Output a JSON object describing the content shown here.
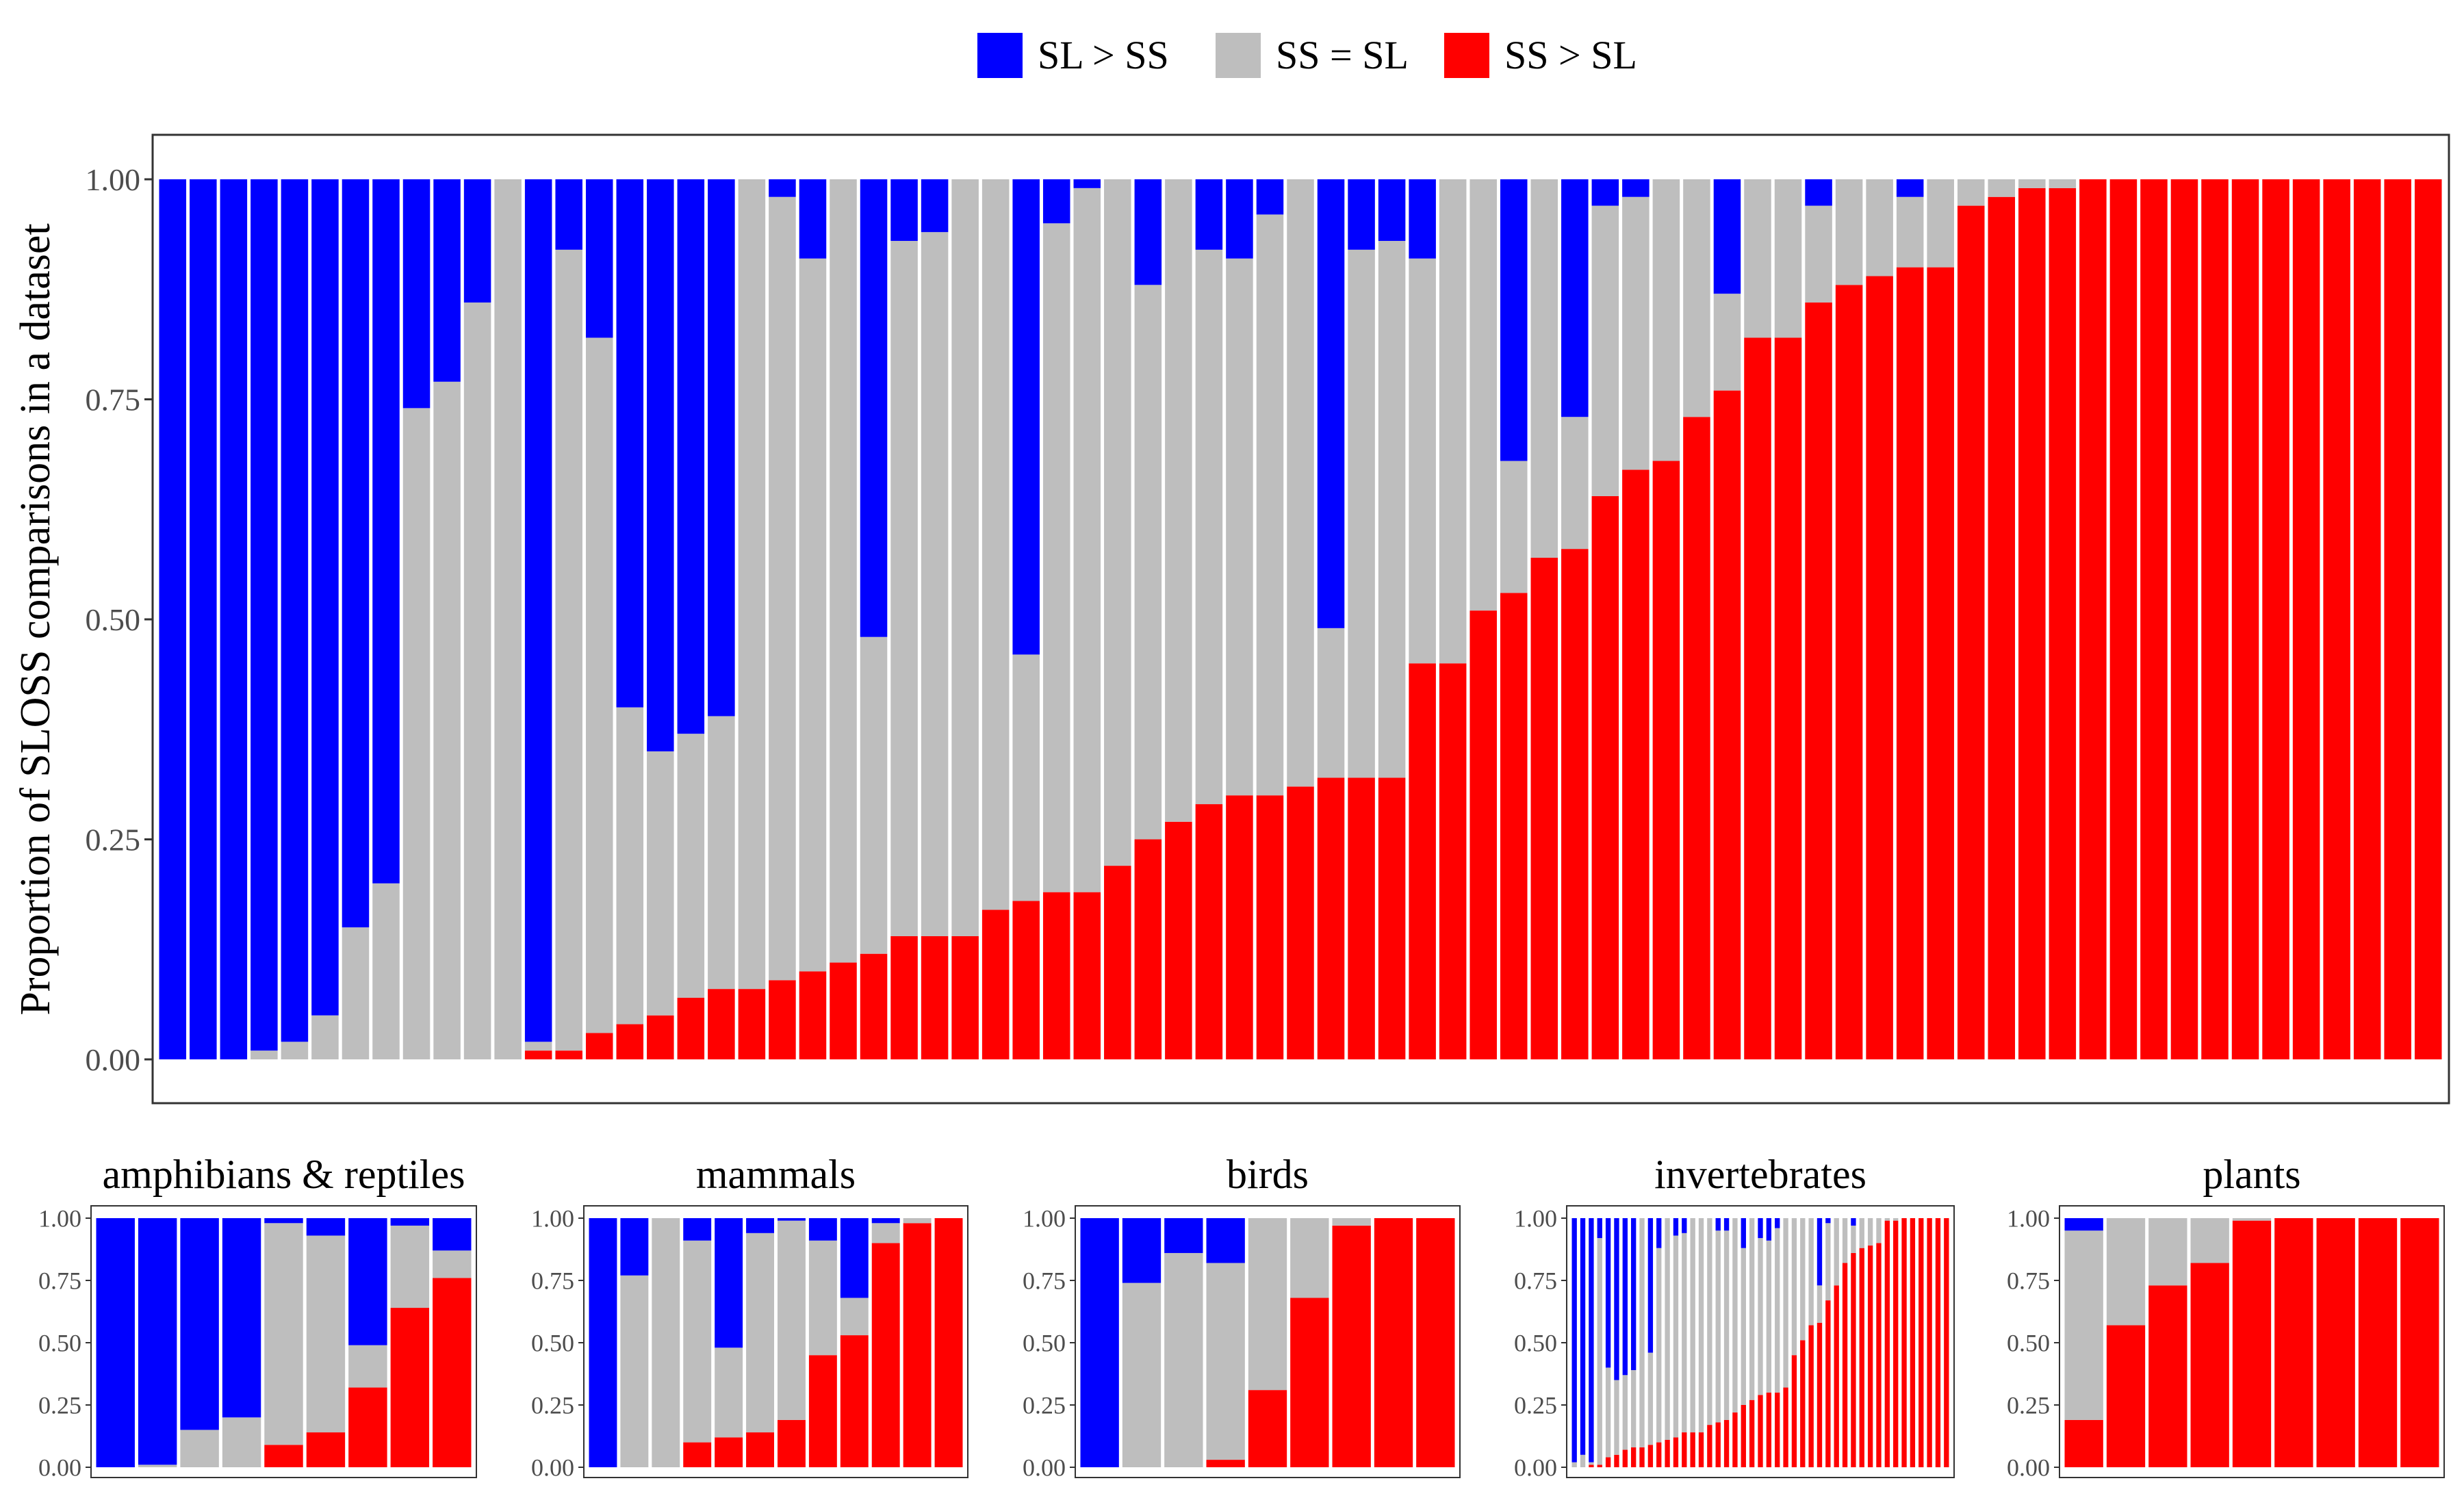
{
  "legend": {
    "items": [
      {
        "label": "SL > SS",
        "color": "#0000ff"
      },
      {
        "label": "SS = SL",
        "color": "#bebebe"
      },
      {
        "label": "SS > SL",
        "color": "#ff0000"
      }
    ]
  },
  "colors": {
    "sl_gt_ss": "#0000ff",
    "ss_eq_sl": "#bebebe",
    "ss_gt_sl": "#ff0000"
  },
  "chart_data": [
    {
      "type": "bar",
      "stacked": true,
      "title": "",
      "ylabel": "Proportion of SLOSS comparisons in a dataset",
      "xlabel": "",
      "ylim": [
        0,
        1
      ],
      "yticks": [
        "0.00",
        "0.25",
        "0.50",
        "0.75",
        "1.00"
      ],
      "grid": false,
      "legend_position": "top",
      "series_names": [
        "SL > SS",
        "SS = SL",
        "SS > SL"
      ],
      "bars": [
        [
          1,
          0,
          0
        ],
        [
          1,
          0,
          0
        ],
        [
          1,
          0,
          0
        ],
        [
          0.99,
          0.01,
          0
        ],
        [
          0.98,
          0.02,
          0
        ],
        [
          0.95,
          0.05,
          0
        ],
        [
          0.85,
          0.15,
          0
        ],
        [
          0.8,
          0.2,
          0
        ],
        [
          0.26,
          0.74,
          0
        ],
        [
          0.23,
          0.77,
          0
        ],
        [
          0.14,
          0.86,
          0
        ],
        [
          0,
          1,
          0
        ],
        [
          0.98,
          0.01,
          0.01
        ],
        [
          0.08,
          0.91,
          0.01
        ],
        [
          0.18,
          0.79,
          0.03
        ],
        [
          0.6,
          0.36,
          0.04
        ],
        [
          0.65,
          0.3,
          0.05
        ],
        [
          0.63,
          0.3,
          0.07
        ],
        [
          0.61,
          0.31,
          0.08
        ],
        [
          0,
          0.92,
          0.08
        ],
        [
          0.02,
          0.89,
          0.09
        ],
        [
          0.09,
          0.81,
          0.1
        ],
        [
          0,
          0.89,
          0.11
        ],
        [
          0.52,
          0.36,
          0.12
        ],
        [
          0.07,
          0.79,
          0.14
        ],
        [
          0.06,
          0.8,
          0.14
        ],
        [
          0,
          0.86,
          0.14
        ],
        [
          0,
          0.83,
          0.17
        ],
        [
          0.54,
          0.28,
          0.18
        ],
        [
          0.05,
          0.76,
          0.19
        ],
        [
          0.01,
          0.8,
          0.19
        ],
        [
          0,
          0.78,
          0.22
        ],
        [
          0.12,
          0.63,
          0.25
        ],
        [
          0,
          0.73,
          0.27
        ],
        [
          0.08,
          0.63,
          0.29
        ],
        [
          0.09,
          0.61,
          0.3
        ],
        [
          0.04,
          0.66,
          0.3
        ],
        [
          0,
          0.69,
          0.31
        ],
        [
          0.51,
          0.17,
          0.32
        ],
        [
          0.08,
          0.6,
          0.32
        ],
        [
          0.07,
          0.61,
          0.32
        ],
        [
          0.09,
          0.46,
          0.45
        ],
        [
          0,
          0.55,
          0.45
        ],
        [
          0,
          0.49,
          0.51
        ],
        [
          0.32,
          0.15,
          0.53
        ],
        [
          0,
          0.43,
          0.57
        ],
        [
          0.27,
          0.15,
          0.58
        ],
        [
          0.03,
          0.33,
          0.64
        ],
        [
          0.02,
          0.31,
          0.67
        ],
        [
          0,
          0.32,
          0.68
        ],
        [
          0,
          0.27,
          0.73
        ],
        [
          0.13,
          0.11,
          0.76
        ],
        [
          0,
          0.18,
          0.82
        ],
        [
          0,
          0.18,
          0.82
        ],
        [
          0.03,
          0.11,
          0.86
        ],
        [
          0,
          0.12,
          0.88
        ],
        [
          0,
          0.11,
          0.89
        ],
        [
          0.02,
          0.08,
          0.9
        ],
        [
          0,
          0.1,
          0.9
        ],
        [
          0,
          0.03,
          0.97
        ],
        [
          0,
          0.02,
          0.98
        ],
        [
          0,
          0.01,
          0.99
        ],
        [
          0,
          0.01,
          0.99
        ],
        [
          0,
          0,
          1
        ],
        [
          0,
          0,
          1
        ],
        [
          0,
          0,
          1
        ],
        [
          0,
          0,
          1
        ],
        [
          0,
          0,
          1
        ],
        [
          0,
          0,
          1
        ],
        [
          0,
          0,
          1
        ],
        [
          0,
          0,
          1
        ],
        [
          0,
          0,
          1
        ],
        [
          0,
          0,
          1
        ],
        [
          0,
          0,
          1
        ],
        [
          0,
          0,
          1
        ]
      ]
    },
    {
      "type": "bar",
      "stacked": true,
      "title": "amphibians & reptiles",
      "ylim": [
        0,
        1
      ],
      "yticks": [
        "0.00",
        "0.25",
        "0.50",
        "0.75",
        "1.00"
      ],
      "bars": [
        [
          1,
          0,
          0
        ],
        [
          0.99,
          0.01,
          0
        ],
        [
          0.85,
          0.15,
          0
        ],
        [
          0.8,
          0.2,
          0
        ],
        [
          0.02,
          0.89,
          0.09
        ],
        [
          0.07,
          0.79,
          0.14
        ],
        [
          0.51,
          0.17,
          0.32
        ],
        [
          0.03,
          0.33,
          0.64
        ],
        [
          0.13,
          0.11,
          0.76
        ]
      ]
    },
    {
      "type": "bar",
      "stacked": true,
      "title": "mammals",
      "ylim": [
        0,
        1
      ],
      "yticks": [
        "0.00",
        "0.25",
        "0.50",
        "0.75",
        "1.00"
      ],
      "bars": [
        [
          1,
          0,
          0
        ],
        [
          0.23,
          0.77,
          0
        ],
        [
          0,
          1,
          0
        ],
        [
          0.09,
          0.81,
          0.1
        ],
        [
          0.52,
          0.36,
          0.12
        ],
        [
          0.06,
          0.8,
          0.14
        ],
        [
          0.01,
          0.8,
          0.19
        ],
        [
          0.09,
          0.46,
          0.45
        ],
        [
          0.32,
          0.15,
          0.53
        ],
        [
          0.02,
          0.08,
          0.9
        ],
        [
          0,
          0.02,
          0.98
        ],
        [
          0,
          0,
          1
        ]
      ]
    },
    {
      "type": "bar",
      "stacked": true,
      "title": "birds",
      "ylim": [
        0,
        1
      ],
      "yticks": [
        "0.00",
        "0.25",
        "0.50",
        "0.75",
        "1.00"
      ],
      "bars": [
        [
          1,
          0,
          0
        ],
        [
          0.26,
          0.74,
          0
        ],
        [
          0.14,
          0.86,
          0
        ],
        [
          0.18,
          0.79,
          0.03
        ],
        [
          0,
          0.69,
          0.31
        ],
        [
          0,
          0.32,
          0.68
        ],
        [
          0,
          0.03,
          0.97
        ],
        [
          0,
          0,
          1
        ],
        [
          0,
          0,
          1
        ]
      ]
    },
    {
      "type": "bar",
      "stacked": true,
      "title": "invertebrates",
      "ylim": [
        0,
        1
      ],
      "yticks": [
        "0.00",
        "0.25",
        "0.50",
        "0.75",
        "1.00"
      ],
      "bars": [
        [
          0.98,
          0.02,
          0
        ],
        [
          0.95,
          0.05,
          0
        ],
        [
          0.98,
          0.01,
          0.01
        ],
        [
          0.08,
          0.91,
          0.01
        ],
        [
          0.6,
          0.36,
          0.04
        ],
        [
          0.65,
          0.3,
          0.05
        ],
        [
          0.63,
          0.3,
          0.07
        ],
        [
          0.61,
          0.31,
          0.08
        ],
        [
          0,
          0.92,
          0.08
        ],
        [
          0.54,
          0.37,
          0.09
        ],
        [
          0.12,
          0.78,
          0.1
        ],
        [
          0,
          0.89,
          0.11
        ],
        [
          0.07,
          0.81,
          0.12
        ],
        [
          0.06,
          0.8,
          0.14
        ],
        [
          0,
          0.86,
          0.14
        ],
        [
          0,
          0.86,
          0.14
        ],
        [
          0,
          0.83,
          0.17
        ],
        [
          0.05,
          0.77,
          0.18
        ],
        [
          0.05,
          0.76,
          0.19
        ],
        [
          0,
          0.78,
          0.22
        ],
        [
          0.12,
          0.63,
          0.25
        ],
        [
          0,
          0.73,
          0.27
        ],
        [
          0.08,
          0.63,
          0.29
        ],
        [
          0.09,
          0.61,
          0.3
        ],
        [
          0.04,
          0.66,
          0.3
        ],
        [
          0,
          0.68,
          0.32
        ],
        [
          0,
          0.55,
          0.45
        ],
        [
          0,
          0.49,
          0.51
        ],
        [
          0,
          0.43,
          0.57
        ],
        [
          0.27,
          0.15,
          0.58
        ],
        [
          0.02,
          0.31,
          0.67
        ],
        [
          0,
          0.27,
          0.73
        ],
        [
          0,
          0.18,
          0.82
        ],
        [
          0.03,
          0.11,
          0.86
        ],
        [
          0,
          0.12,
          0.88
        ],
        [
          0,
          0.11,
          0.89
        ],
        [
          0,
          0.1,
          0.9
        ],
        [
          0,
          0.01,
          0.99
        ],
        [
          0,
          0.01,
          0.99
        ],
        [
          0,
          0,
          1
        ],
        [
          0,
          0,
          1
        ],
        [
          0,
          0,
          1
        ],
        [
          0,
          0,
          1
        ],
        [
          0,
          0,
          1
        ],
        [
          0,
          0,
          1
        ]
      ]
    },
    {
      "type": "bar",
      "stacked": true,
      "title": "plants",
      "ylim": [
        0,
        1
      ],
      "yticks": [
        "0.00",
        "0.25",
        "0.50",
        "0.75",
        "1.00"
      ],
      "bars": [
        [
          0.05,
          0.76,
          0.19
        ],
        [
          0,
          0.43,
          0.57
        ],
        [
          0,
          0.27,
          0.73
        ],
        [
          0,
          0.18,
          0.82
        ],
        [
          0,
          0.01,
          0.99
        ],
        [
          0,
          0,
          1
        ],
        [
          0,
          0,
          1
        ],
        [
          0,
          0,
          1
        ],
        [
          0,
          0,
          1
        ]
      ]
    }
  ]
}
